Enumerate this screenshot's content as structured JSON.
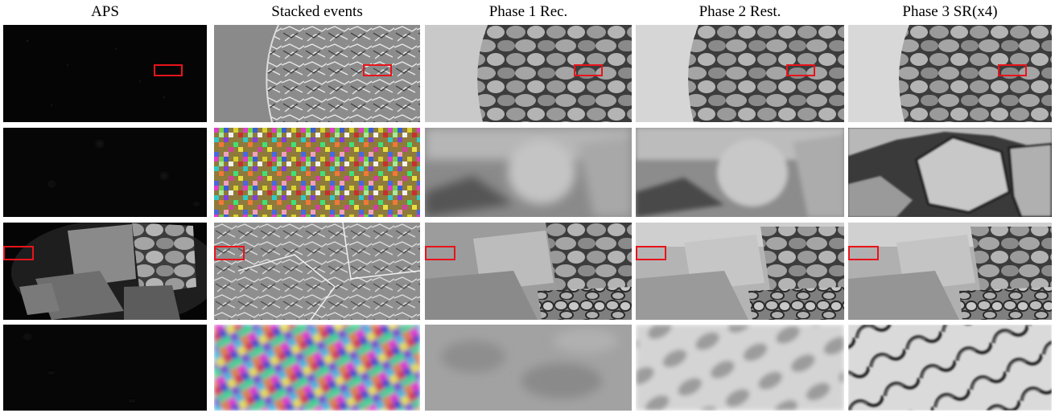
{
  "columns": [
    {
      "title": "APS"
    },
    {
      "title": "Stacked events"
    },
    {
      "title": "Phase 1 Rec."
    },
    {
      "title": "Phase 2 Rest."
    },
    {
      "title": "Phase 3 SR(x4)"
    }
  ],
  "rows": [
    {
      "kind": "overview",
      "scene": "stone-wall-curved-edge"
    },
    {
      "kind": "zoom-crop",
      "scene": "single-stone"
    },
    {
      "kind": "overview",
      "scene": "stone-blocks-corner"
    },
    {
      "kind": "zoom-crop",
      "scene": "checker-texture"
    }
  ],
  "colors": {
    "roi_box": "#e8141b",
    "background": "#ffffff"
  }
}
